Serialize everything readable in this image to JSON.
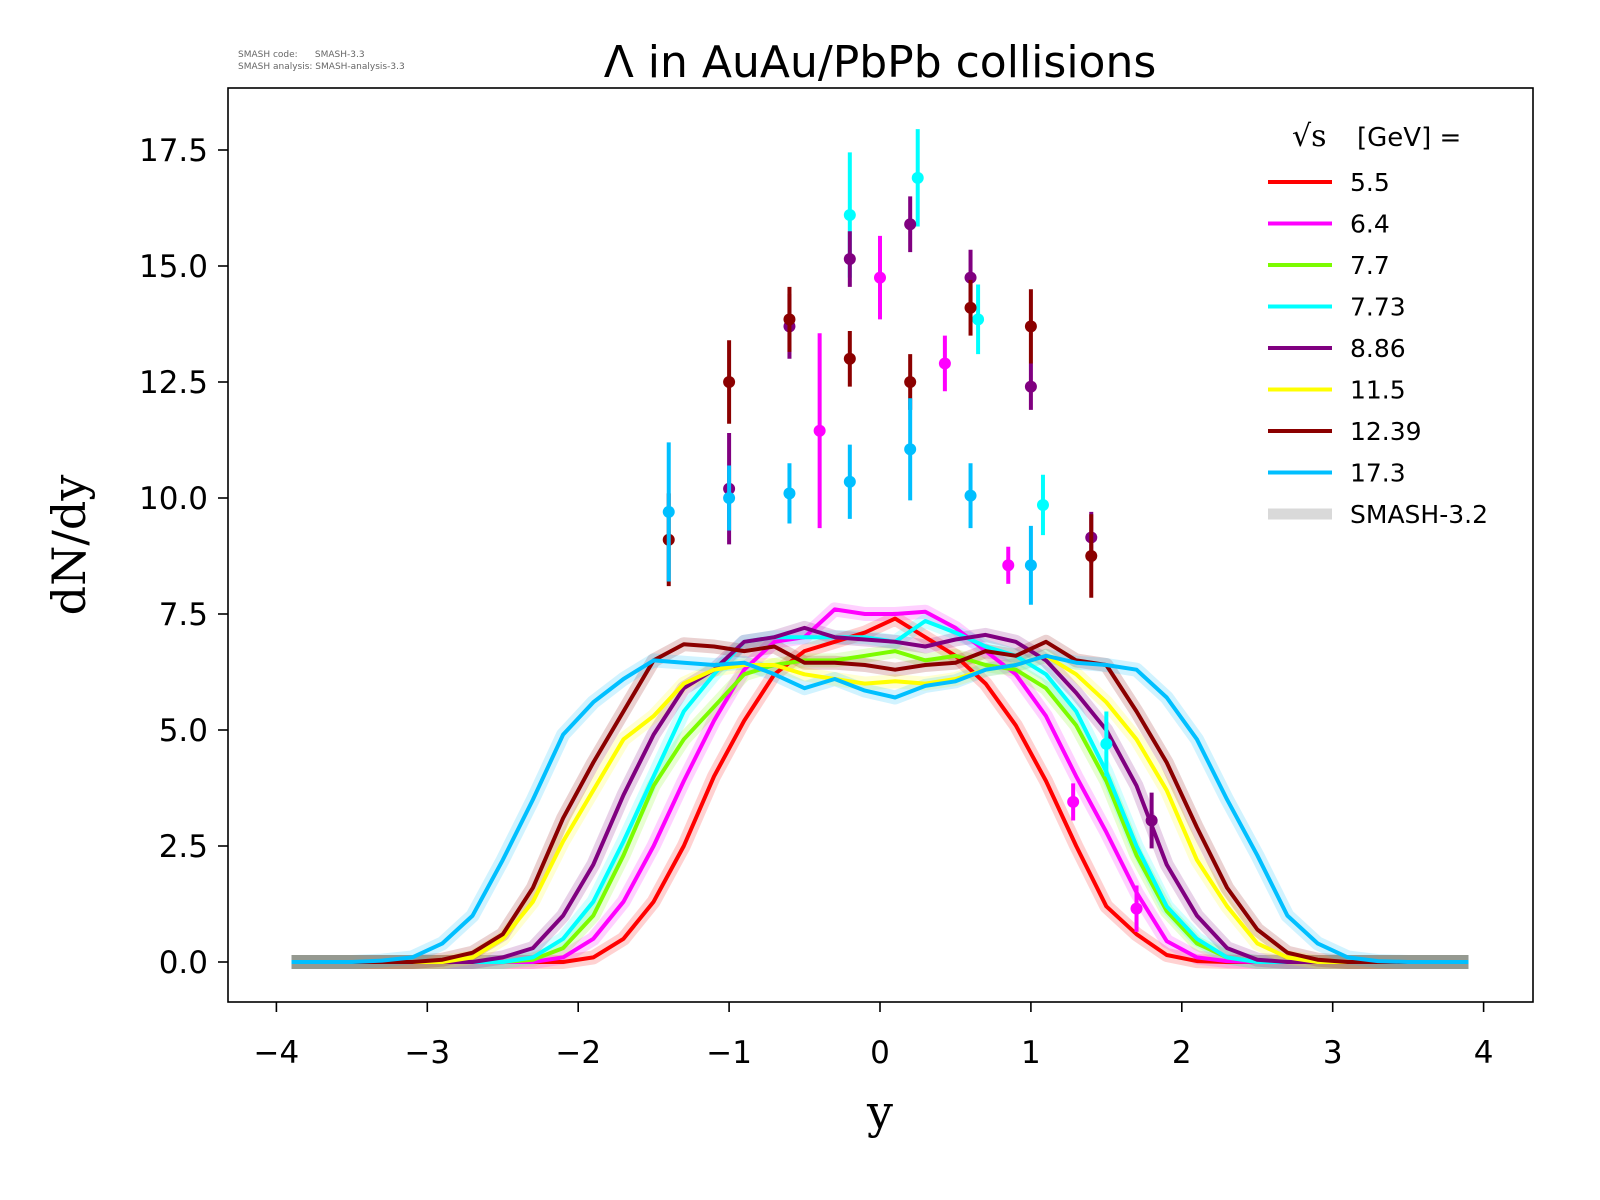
{
  "chart_data": {
    "type": "line",
    "title": "Λ in AuAu/PbPb collisions",
    "xlabel": "y",
    "ylabel": "dN/dy",
    "xlim": [
      -4.35,
      4.3
    ],
    "ylim": [
      -0.9,
      18.8
    ],
    "xticks": [
      -4,
      -3,
      -2,
      -1,
      0,
      1,
      2,
      3,
      4
    ],
    "xtick_labels": [
      "−4",
      "−3",
      "−2",
      "−1",
      "0",
      "1",
      "2",
      "3",
      "4"
    ],
    "yticks": [
      0,
      2.5,
      5,
      7.5,
      10,
      12.5,
      15,
      17.5
    ],
    "ytick_labels": [
      "0.0",
      "2.5",
      "5.0",
      "7.5",
      "10.0",
      "12.5",
      "15.0",
      "17.5"
    ],
    "grid": false,
    "watermark": [
      "SMASH code:      SMASH-3.3",
      "SMASH analysis: SMASH-analysis-3.3"
    ],
    "legend": {
      "placement": "top-right",
      "title": "[GeV] =",
      "title_symbol": "√s",
      "band_label": "SMASH-3.2",
      "band_color": "#d9d9d9"
    },
    "series": [
      {
        "name": "5.5",
        "color": "#ff0000",
        "line": [
          [
            -3.9,
            0
          ],
          [
            -2.1,
            0
          ],
          [
            -1.9,
            0.1
          ],
          [
            -1.7,
            0.5
          ],
          [
            -1.5,
            1.3
          ],
          [
            -1.3,
            2.5
          ],
          [
            -1.1,
            4.0
          ],
          [
            -0.9,
            5.2
          ],
          [
            -0.7,
            6.2
          ],
          [
            -0.5,
            6.7
          ],
          [
            -0.3,
            6.9
          ],
          [
            -0.1,
            7.1
          ],
          [
            0.1,
            7.4
          ],
          [
            0.3,
            7.0
          ],
          [
            0.5,
            6.6
          ],
          [
            0.7,
            6.0
          ],
          [
            0.9,
            5.1
          ],
          [
            1.1,
            3.9
          ],
          [
            1.3,
            2.5
          ],
          [
            1.5,
            1.2
          ],
          [
            1.7,
            0.6
          ],
          [
            1.9,
            0.15
          ],
          [
            2.1,
            0.02
          ],
          [
            2.3,
            0
          ],
          [
            3.9,
            0
          ]
        ],
        "points": []
      },
      {
        "name": "6.4",
        "color": "#ff00ff",
        "line": [
          [
            -3.9,
            0
          ],
          [
            -2.3,
            0
          ],
          [
            -2.1,
            0.1
          ],
          [
            -1.9,
            0.5
          ],
          [
            -1.7,
            1.3
          ],
          [
            -1.5,
            2.5
          ],
          [
            -1.3,
            3.9
          ],
          [
            -1.1,
            5.2
          ],
          [
            -0.9,
            6.3
          ],
          [
            -0.7,
            6.9
          ],
          [
            -0.5,
            7.0
          ],
          [
            -0.3,
            7.6
          ],
          [
            -0.1,
            7.5
          ],
          [
            0.1,
            7.5
          ],
          [
            0.3,
            7.55
          ],
          [
            0.5,
            7.2
          ],
          [
            0.7,
            6.7
          ],
          [
            0.9,
            6.2
          ],
          [
            1.1,
            5.3
          ],
          [
            1.3,
            4.0
          ],
          [
            1.5,
            2.8
          ],
          [
            1.7,
            1.5
          ],
          [
            1.9,
            0.45
          ],
          [
            2.1,
            0.1
          ],
          [
            2.3,
            0.02
          ],
          [
            2.5,
            0
          ],
          [
            3.9,
            0
          ]
        ],
        "points": [
          [
            -0.4,
            11.45,
            2.1
          ],
          [
            0.0,
            14.75,
            0.9
          ],
          [
            0.43,
            12.9,
            0.6
          ],
          [
            0.85,
            8.55,
            0.4
          ],
          [
            1.28,
            3.45,
            0.4
          ],
          [
            1.7,
            1.15,
            0.5
          ]
        ]
      },
      {
        "name": "7.7",
        "color": "#7cfc00",
        "line": [
          [
            -3.9,
            0
          ],
          [
            -2.5,
            0
          ],
          [
            -2.3,
            0.05
          ],
          [
            -2.1,
            0.3
          ],
          [
            -1.9,
            1.0
          ],
          [
            -1.7,
            2.3
          ],
          [
            -1.5,
            3.8
          ],
          [
            -1.3,
            4.8
          ],
          [
            -1.1,
            5.5
          ],
          [
            -0.9,
            6.2
          ],
          [
            -0.7,
            6.4
          ],
          [
            -0.5,
            6.5
          ],
          [
            -0.3,
            6.5
          ],
          [
            -0.1,
            6.6
          ],
          [
            0.1,
            6.7
          ],
          [
            0.3,
            6.5
          ],
          [
            0.5,
            6.6
          ],
          [
            0.7,
            6.4
          ],
          [
            0.9,
            6.3
          ],
          [
            1.1,
            5.9
          ],
          [
            1.3,
            5.1
          ],
          [
            1.5,
            3.9
          ],
          [
            1.7,
            2.3
          ],
          [
            1.9,
            1.1
          ],
          [
            2.1,
            0.4
          ],
          [
            2.3,
            0.1
          ],
          [
            2.5,
            0
          ],
          [
            3.9,
            0
          ]
        ],
        "points": []
      },
      {
        "name": "7.73",
        "color": "#00ffff",
        "line": [
          [
            -3.9,
            0
          ],
          [
            -2.5,
            0
          ],
          [
            -2.3,
            0.1
          ],
          [
            -2.1,
            0.5
          ],
          [
            -1.9,
            1.3
          ],
          [
            -1.7,
            2.6
          ],
          [
            -1.5,
            4.0
          ],
          [
            -1.3,
            5.4
          ],
          [
            -1.1,
            6.2
          ],
          [
            -0.9,
            6.9
          ],
          [
            -0.7,
            7.0
          ],
          [
            -0.5,
            7.0
          ],
          [
            -0.3,
            7.0
          ],
          [
            -0.1,
            7.0
          ],
          [
            0.1,
            6.9
          ],
          [
            0.3,
            7.35
          ],
          [
            0.5,
            7.1
          ],
          [
            0.7,
            6.8
          ],
          [
            0.9,
            6.6
          ],
          [
            1.1,
            6.2
          ],
          [
            1.3,
            5.4
          ],
          [
            1.5,
            4.1
          ],
          [
            1.7,
            2.5
          ],
          [
            1.9,
            1.2
          ],
          [
            2.1,
            0.5
          ],
          [
            2.3,
            0.1
          ],
          [
            2.5,
            0
          ],
          [
            3.9,
            0
          ]
        ],
        "points": [
          [
            -0.2,
            16.1,
            1.35
          ],
          [
            0.25,
            16.9,
            1.05
          ],
          [
            0.65,
            13.85,
            0.75
          ],
          [
            1.08,
            9.85,
            0.65
          ],
          [
            1.5,
            4.7,
            0.7
          ]
        ]
      },
      {
        "name": "8.86",
        "color": "#800080",
        "line": [
          [
            -3.9,
            0
          ],
          [
            -2.7,
            0
          ],
          [
            -2.5,
            0.1
          ],
          [
            -2.3,
            0.3
          ],
          [
            -2.1,
            1.0
          ],
          [
            -1.9,
            2.1
          ],
          [
            -1.7,
            3.6
          ],
          [
            -1.5,
            4.9
          ],
          [
            -1.3,
            5.9
          ],
          [
            -1.1,
            6.3
          ],
          [
            -0.9,
            6.9
          ],
          [
            -0.7,
            7.0
          ],
          [
            -0.5,
            7.2
          ],
          [
            -0.3,
            7.0
          ],
          [
            -0.1,
            6.95
          ],
          [
            0.1,
            6.9
          ],
          [
            0.3,
            6.8
          ],
          [
            0.5,
            6.95
          ],
          [
            0.7,
            7.05
          ],
          [
            0.9,
            6.9
          ],
          [
            1.1,
            6.5
          ],
          [
            1.3,
            5.8
          ],
          [
            1.5,
            5.0
          ],
          [
            1.7,
            3.8
          ],
          [
            1.9,
            2.1
          ],
          [
            2.1,
            1.0
          ],
          [
            2.3,
            0.3
          ],
          [
            2.5,
            0.05
          ],
          [
            2.7,
            0
          ],
          [
            3.9,
            0
          ]
        ],
        "points": [
          [
            -1.0,
            10.2,
            1.2
          ],
          [
            -0.6,
            13.7,
            0.7
          ],
          [
            -0.2,
            15.15,
            0.6
          ],
          [
            0.2,
            15.9,
            0.6
          ],
          [
            0.6,
            14.75,
            0.6
          ],
          [
            1.0,
            12.4,
            0.5
          ],
          [
            1.4,
            9.15,
            0.55
          ],
          [
            1.8,
            3.05,
            0.6
          ]
        ]
      },
      {
        "name": "11.5",
        "color": "#ffff00",
        "line": [
          [
            -3.9,
            0
          ],
          [
            -2.9,
            0
          ],
          [
            -2.7,
            0.1
          ],
          [
            -2.5,
            0.5
          ],
          [
            -2.3,
            1.3
          ],
          [
            -2.1,
            2.6
          ],
          [
            -1.9,
            3.7
          ],
          [
            -1.7,
            4.8
          ],
          [
            -1.5,
            5.3
          ],
          [
            -1.3,
            6.0
          ],
          [
            -1.1,
            6.3
          ],
          [
            -0.9,
            6.4
          ],
          [
            -0.7,
            6.4
          ],
          [
            -0.5,
            6.2
          ],
          [
            -0.3,
            6.1
          ],
          [
            -0.1,
            6.0
          ],
          [
            0.1,
            6.05
          ],
          [
            0.3,
            6.0
          ],
          [
            0.5,
            6.1
          ],
          [
            0.7,
            6.3
          ],
          [
            0.9,
            6.4
          ],
          [
            1.1,
            6.6
          ],
          [
            1.3,
            6.2
          ],
          [
            1.5,
            5.6
          ],
          [
            1.7,
            4.8
          ],
          [
            1.9,
            3.7
          ],
          [
            2.1,
            2.2
          ],
          [
            2.3,
            1.2
          ],
          [
            2.5,
            0.4
          ],
          [
            2.7,
            0.1
          ],
          [
            2.9,
            0
          ],
          [
            3.9,
            0
          ]
        ],
        "points": []
      },
      {
        "name": "12.39",
        "color": "#8b0000",
        "line": [
          [
            -3.9,
            0
          ],
          [
            -3.1,
            0
          ],
          [
            -2.9,
            0.05
          ],
          [
            -2.7,
            0.2
          ],
          [
            -2.5,
            0.6
          ],
          [
            -2.3,
            1.6
          ],
          [
            -2.1,
            3.1
          ],
          [
            -1.9,
            4.3
          ],
          [
            -1.7,
            5.4
          ],
          [
            -1.5,
            6.5
          ],
          [
            -1.3,
            6.85
          ],
          [
            -1.1,
            6.8
          ],
          [
            -0.9,
            6.7
          ],
          [
            -0.7,
            6.8
          ],
          [
            -0.5,
            6.45
          ],
          [
            -0.3,
            6.45
          ],
          [
            -0.1,
            6.4
          ],
          [
            0.1,
            6.3
          ],
          [
            0.3,
            6.4
          ],
          [
            0.5,
            6.45
          ],
          [
            0.7,
            6.7
          ],
          [
            0.9,
            6.6
          ],
          [
            1.1,
            6.9
          ],
          [
            1.3,
            6.5
          ],
          [
            1.5,
            6.4
          ],
          [
            1.7,
            5.4
          ],
          [
            1.9,
            4.3
          ],
          [
            2.1,
            2.9
          ],
          [
            2.3,
            1.6
          ],
          [
            2.5,
            0.7
          ],
          [
            2.7,
            0.2
          ],
          [
            2.9,
            0.05
          ],
          [
            3.1,
            0
          ],
          [
            3.9,
            0
          ]
        ],
        "points": [
          [
            -1.4,
            9.1,
            1.0
          ],
          [
            -1.0,
            12.5,
            0.9
          ],
          [
            -0.6,
            13.85,
            0.7
          ],
          [
            -0.2,
            13.0,
            0.6
          ],
          [
            0.2,
            12.5,
            0.6
          ],
          [
            0.6,
            14.1,
            0.6
          ],
          [
            1.0,
            13.7,
            0.8
          ],
          [
            1.4,
            8.75,
            0.9
          ]
        ]
      },
      {
        "name": "17.3",
        "color": "#00bfff",
        "line": [
          [
            -3.9,
            0
          ],
          [
            -3.5,
            0
          ],
          [
            -3.3,
            0.03
          ],
          [
            -3.1,
            0.1
          ],
          [
            -2.9,
            0.4
          ],
          [
            -2.7,
            1.0
          ],
          [
            -2.5,
            2.2
          ],
          [
            -2.3,
            3.5
          ],
          [
            -2.1,
            4.9
          ],
          [
            -1.9,
            5.6
          ],
          [
            -1.7,
            6.1
          ],
          [
            -1.5,
            6.5
          ],
          [
            -1.3,
            6.45
          ],
          [
            -1.1,
            6.4
          ],
          [
            -0.9,
            6.45
          ],
          [
            -0.7,
            6.2
          ],
          [
            -0.5,
            5.9
          ],
          [
            -0.3,
            6.1
          ],
          [
            -0.1,
            5.85
          ],
          [
            0.1,
            5.7
          ],
          [
            0.3,
            5.95
          ],
          [
            0.5,
            6.05
          ],
          [
            0.7,
            6.3
          ],
          [
            0.9,
            6.4
          ],
          [
            1.1,
            6.6
          ],
          [
            1.3,
            6.45
          ],
          [
            1.5,
            6.4
          ],
          [
            1.7,
            6.3
          ],
          [
            1.9,
            5.7
          ],
          [
            2.1,
            4.8
          ],
          [
            2.3,
            3.5
          ],
          [
            2.5,
            2.3
          ],
          [
            2.7,
            1.0
          ],
          [
            2.9,
            0.4
          ],
          [
            3.1,
            0.1
          ],
          [
            3.3,
            0.02
          ],
          [
            3.5,
            0
          ],
          [
            3.9,
            0
          ]
        ],
        "points": [
          [
            -1.4,
            9.7,
            1.5
          ],
          [
            -1.0,
            10.0,
            0.7
          ],
          [
            -0.6,
            10.1,
            0.65
          ],
          [
            -0.2,
            10.35,
            0.8
          ],
          [
            0.2,
            11.05,
            1.1
          ],
          [
            0.6,
            10.05,
            0.7
          ],
          [
            1.0,
            8.55,
            0.85
          ]
        ]
      }
    ]
  }
}
